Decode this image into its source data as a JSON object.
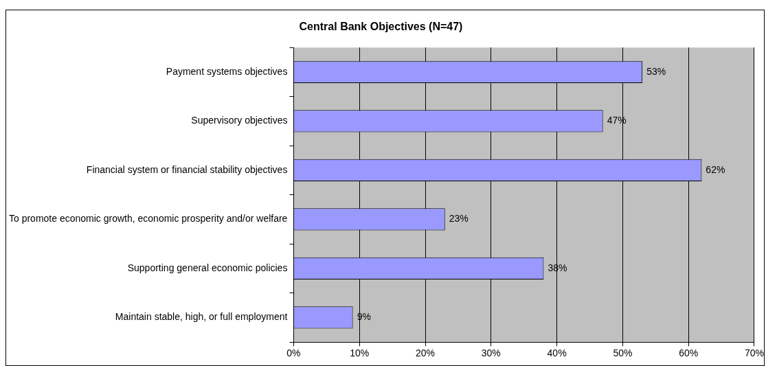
{
  "chart_data": {
    "type": "bar",
    "orientation": "horizontal",
    "title": "Central Bank Objectives (N=47)",
    "categories": [
      "Payment systems objectives",
      "Supervisory objectives",
      "Financial system or financial stability objectives",
      "To promote economic growth, economic prosperity and/or welfare",
      "Supporting general economic policies",
      "Maintain stable, high, or full employment"
    ],
    "values": [
      53,
      47,
      62,
      23,
      38,
      9
    ],
    "color": "#9999ff",
    "xlim": [
      0,
      70
    ],
    "xticks": [
      {
        "value": 0,
        "label": "0%"
      },
      {
        "value": 10,
        "label": "10%"
      },
      {
        "value": 20,
        "label": "20%"
      },
      {
        "value": 30,
        "label": "30%"
      },
      {
        "value": 40,
        "label": "40%"
      },
      {
        "value": 50,
        "label": "50%"
      },
      {
        "value": 60,
        "label": "60%"
      },
      {
        "value": 70,
        "label": "70%"
      }
    ],
    "value_labels": [
      "53%",
      "47%",
      "62%",
      "23%",
      "38%",
      "9%"
    ],
    "grid": "x",
    "legend": false
  }
}
